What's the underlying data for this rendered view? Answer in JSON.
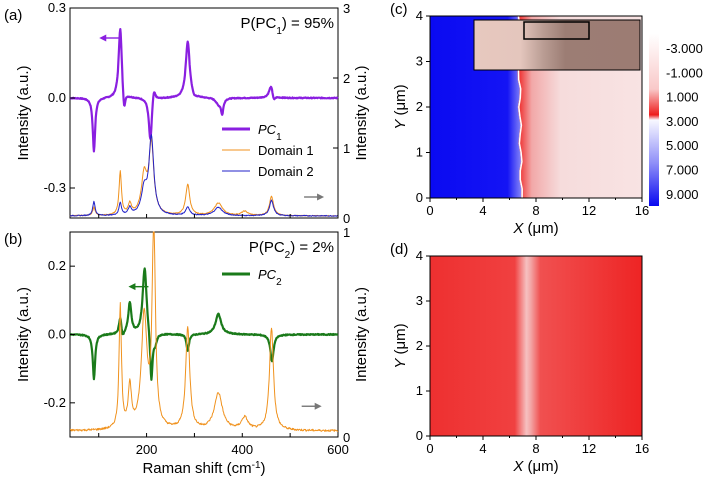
{
  "colors": {
    "pc1": "#8a1fe0",
    "pc2": "#1a7a1a",
    "domain1": "#f0921e",
    "domain2": "#2222c8",
    "map_blue": "#1010f0",
    "map_red": "#f01010",
    "map_pink": "#f6d6d6"
  },
  "chart_data": [
    {
      "id": "a",
      "panel_label": "(a)",
      "type": "line",
      "annotation": {
        "prefix": "P(PC",
        "sub": "1",
        "suffix": ") = 95%"
      },
      "ylabel": "Intensity (a.u.)",
      "ylabel_right": "Intensity (a.u.)",
      "xlim": [
        40,
        600
      ],
      "ylim": [
        -0.4,
        0.3
      ],
      "ylim_right": [
        0,
        3
      ],
      "yticks": [
        {
          "v": 0.3,
          "t": "0.3"
        },
        {
          "v": 0.0,
          "t": "0.0"
        },
        {
          "v": -0.3,
          "t": "-0.3"
        }
      ],
      "yticks_right": [
        {
          "v": 3,
          "t": "3"
        },
        {
          "v": 2,
          "t": "2"
        },
        {
          "v": 1,
          "t": "1"
        },
        {
          "v": 0,
          "t": "0"
        }
      ],
      "legend": [
        {
          "name_main": "PC",
          "name_sub": "1",
          "color": "#8a1fe0",
          "width": 3
        },
        {
          "name_main": "Domain 1",
          "name_sub": "",
          "color": "#f0921e",
          "width": 1
        },
        {
          "name_main": "Domain 2",
          "name_sub": "",
          "color": "#2222c8",
          "width": 1
        }
      ],
      "series": [
        {
          "key": "pc1",
          "axis": "left",
          "color": "#8a1fe0",
          "width": 2.2,
          "baseline": 0.0,
          "noise": 0.003,
          "peaks": [
            [
              90,
              -0.18,
              3
            ],
            [
              145,
              0.24,
              4
            ],
            [
              153,
              -0.07,
              3
            ],
            [
              208,
              -0.15,
              4
            ],
            [
              215,
              0.05,
              4
            ],
            [
              286,
              0.19,
              5
            ],
            [
              300,
              -0.01,
              5
            ],
            [
              350,
              -0.02,
              6
            ],
            [
              358,
              -0.05,
              3
            ],
            [
              460,
              0.04,
              5
            ],
            [
              466,
              -0.02,
              3
            ]
          ]
        },
        {
          "key": "domain1",
          "axis": "right",
          "color": "#f0921e",
          "width": 1,
          "baseline": 0.03,
          "noise": 0.012,
          "peaks": [
            [
              90,
              0.12,
              3
            ],
            [
              145,
              0.62,
              3
            ],
            [
              165,
              0.15,
              4
            ],
            [
              195,
              0.55,
              7
            ],
            [
              210,
              1.0,
              6
            ],
            [
              286,
              0.44,
              5
            ],
            [
              350,
              0.18,
              10
            ],
            [
              405,
              0.06,
              8
            ],
            [
              461,
              0.28,
              5
            ]
          ]
        },
        {
          "key": "domain2",
          "axis": "right",
          "color": "#2222c8",
          "width": 1,
          "baseline": 0.03,
          "noise": 0.012,
          "peaks": [
            [
              90,
              0.2,
              3
            ],
            [
              145,
              0.18,
              3
            ],
            [
              165,
              0.1,
              4
            ],
            [
              195,
              0.35,
              7
            ],
            [
              210,
              1.1,
              6
            ],
            [
              286,
              0.12,
              5
            ],
            [
              350,
              0.12,
              10
            ],
            [
              461,
              0.22,
              5
            ]
          ]
        }
      ],
      "arrows": [
        {
          "x": 122,
          "y": 0.2,
          "dir": "left",
          "color": "#8a1fe0"
        },
        {
          "x": 550,
          "y": 0.3,
          "dir": "right",
          "color": "#777777",
          "axis": "right"
        }
      ]
    },
    {
      "id": "b",
      "panel_label": "(b)",
      "type": "line",
      "annotation": {
        "prefix": "P(PC",
        "sub": "2",
        "suffix": ") = 2%"
      },
      "xlabel": "Raman shift (cm",
      "xlabel_sup": "-1",
      "xlabel_end": ")",
      "ylabel": "Intensity (a.u.)",
      "ylabel_right": "Intensity (a.u.)",
      "xlim": [
        40,
        600
      ],
      "ylim": [
        -0.3,
        0.3
      ],
      "ylim_right": [
        0,
        1
      ],
      "xticks": [
        {
          "v": 200,
          "t": "200"
        },
        {
          "v": 400,
          "t": "400"
        },
        {
          "v": 600,
          "t": "600"
        }
      ],
      "yticks": [
        {
          "v": 0.2,
          "t": "0.2"
        },
        {
          "v": 0.0,
          "t": "0.0"
        },
        {
          "v": -0.2,
          "t": "-0.2"
        }
      ],
      "yticks_right": [
        {
          "v": 1,
          "t": "1"
        },
        {
          "v": 0,
          "t": "0"
        }
      ],
      "legend": [
        {
          "name_main": "PC",
          "name_sub": "2",
          "color": "#1a7a1a",
          "width": 3
        }
      ],
      "series": [
        {
          "key": "pc2",
          "axis": "left",
          "color": "#1a7a1a",
          "width": 2.2,
          "baseline": 0.0,
          "noise": 0.003,
          "peaks": [
            [
              90,
              -0.13,
              3
            ],
            [
              145,
              0.05,
              3
            ],
            [
              150,
              -0.02,
              3
            ],
            [
              165,
              0.09,
              4
            ],
            [
              196,
              0.2,
              5
            ],
            [
              210,
              -0.15,
              3
            ],
            [
              218,
              -0.03,
              4
            ],
            [
              286,
              -0.05,
              3
            ],
            [
              350,
              0.06,
              7
            ],
            [
              462,
              -0.08,
              4
            ]
          ]
        },
        {
          "key": "domain1",
          "axis": "right",
          "color": "#f0921e",
          "width": 1,
          "baseline": 0.03,
          "noise": 0.01,
          "peaks": [
            [
              145,
              0.6,
              3
            ],
            [
              165,
              0.2,
              4
            ],
            [
              195,
              0.55,
              7
            ],
            [
              215,
              1.0,
              4
            ],
            [
              286,
              0.5,
              5
            ],
            [
              350,
              0.18,
              10
            ],
            [
              405,
              0.06,
              8
            ],
            [
              461,
              0.5,
              5
            ]
          ]
        }
      ],
      "arrows": [
        {
          "x": 183,
          "y": 0.14,
          "dir": "left",
          "color": "#1a7a1a"
        },
        {
          "x": 545,
          "y": 0.15,
          "dir": "right",
          "color": "#777777",
          "axis": "right"
        }
      ]
    },
    {
      "id": "c",
      "panel_label": "(c)",
      "type": "heatmap",
      "xlabel_main": "X",
      "xlabel_unit": " (μm)",
      "ylabel_main": "Y",
      "ylabel_unit": " (μm)",
      "xlim": [
        0,
        16
      ],
      "ylim": [
        0,
        4
      ],
      "xticks": [
        {
          "v": 0,
          "t": "0"
        },
        {
          "v": 4,
          "t": "4"
        },
        {
          "v": 8,
          "t": "8"
        },
        {
          "v": 12,
          "t": "12"
        },
        {
          "v": 16,
          "t": "16"
        }
      ],
      "yticks": [
        {
          "v": 0,
          "t": "0"
        },
        {
          "v": 1,
          "t": "1"
        },
        {
          "v": 2,
          "t": "2"
        },
        {
          "v": 3,
          "t": "3"
        },
        {
          "v": 4,
          "t": "4"
        }
      ],
      "boundary_x": 6.9,
      "colorbar": [
        "-3.000",
        "-1.000",
        "1.000",
        "3.000",
        "5.000",
        "7.000",
        "9.000"
      ],
      "inset": "optical image with selected region rectangle"
    },
    {
      "id": "d",
      "panel_label": "(d)",
      "type": "heatmap",
      "xlabel_main": "X",
      "xlabel_unit": " (μm)",
      "ylabel_main": "Y",
      "ylabel_unit": " (μm)",
      "xlim": [
        0,
        16
      ],
      "ylim": [
        0,
        4
      ],
      "xticks": [
        {
          "v": 0,
          "t": "0"
        },
        {
          "v": 4,
          "t": "4"
        },
        {
          "v": 8,
          "t": "8"
        },
        {
          "v": 12,
          "t": "12"
        },
        {
          "v": 16,
          "t": "16"
        }
      ],
      "yticks": [
        {
          "v": 0,
          "t": "0"
        },
        {
          "v": 1,
          "t": "1"
        },
        {
          "v": 2,
          "t": "2"
        },
        {
          "v": 3,
          "t": "3"
        },
        {
          "v": 4,
          "t": "4"
        }
      ],
      "stripe_x": 7.3
    }
  ]
}
